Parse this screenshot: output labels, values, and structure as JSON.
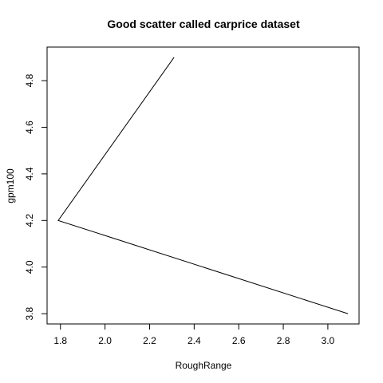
{
  "chart_data": {
    "type": "line",
    "title": "Good scatter called carprice dataset",
    "xlabel": "RoughRange",
    "ylabel": "gpm100",
    "x": [
      2.31,
      1.79,
      3.09
    ],
    "y": [
      4.9,
      4.2,
      3.8
    ],
    "x_ticks": [
      1.8,
      2.0,
      2.2,
      2.4,
      2.6,
      2.8,
      3.0
    ],
    "x_tick_labels": [
      "1.8",
      "2.0",
      "2.2",
      "2.4",
      "2.6",
      "2.8",
      "3.0"
    ],
    "y_ticks": [
      3.8,
      4.0,
      4.2,
      4.4,
      4.6,
      4.8
    ],
    "y_tick_labels": [
      "3.8",
      "4.0",
      "4.2",
      "4.4",
      "4.6",
      "4.8"
    ],
    "xlim": [
      1.74,
      3.14
    ],
    "ylim": [
      3.756,
      4.944
    ],
    "grid": false,
    "line_color": "#000000",
    "axis_color": "#000000"
  }
}
